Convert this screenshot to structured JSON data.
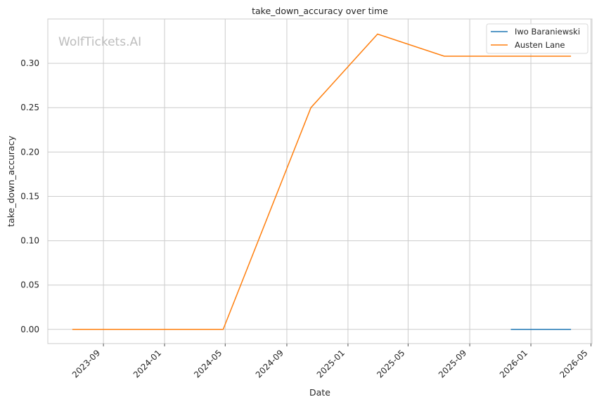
{
  "watermark": "WolfTickets.AI",
  "chart_data": {
    "type": "line",
    "title": "take_down_accuracy over time",
    "xlabel": "Date",
    "ylabel": "take_down_accuracy",
    "x_tick_labels": [
      "2023-09",
      "2024-01",
      "2024-05",
      "2024-09",
      "2025-01",
      "2025-05",
      "2025-09",
      "2026-01",
      "2026-05"
    ],
    "y_tick_labels": [
      "0.00",
      "0.05",
      "0.10",
      "0.15",
      "0.20",
      "0.25",
      "0.30"
    ],
    "y_ticks": [
      0,
      0.05,
      0.1,
      0.15,
      0.2,
      0.25,
      0.3
    ],
    "ylim": [
      -0.016,
      0.35
    ],
    "xlim": [
      "2023-05-13",
      "2026-05-03"
    ],
    "grid": true,
    "legend_position": "top-right",
    "colors": {
      "Iwo Baraniewski": "#1f77b4",
      "Austen Lane": "#ff7f0e"
    },
    "series": [
      {
        "name": "Iwo Baraniewski",
        "color": "#1f77b4",
        "points": [
          {
            "x": "2025-11-22",
            "y": 0.0
          },
          {
            "x": "2026-03-22",
            "y": 0.0
          }
        ]
      },
      {
        "name": "Austen Lane",
        "color": "#ff7f0e",
        "points": [
          {
            "x": "2023-07-01",
            "y": 0.0
          },
          {
            "x": "2024-04-27",
            "y": 0.0
          },
          {
            "x": "2024-10-19",
            "y": 0.25
          },
          {
            "x": "2025-03-01",
            "y": 0.333
          },
          {
            "x": "2025-07-12",
            "y": 0.308
          },
          {
            "x": "2026-03-22",
            "y": 0.308
          }
        ]
      }
    ]
  }
}
